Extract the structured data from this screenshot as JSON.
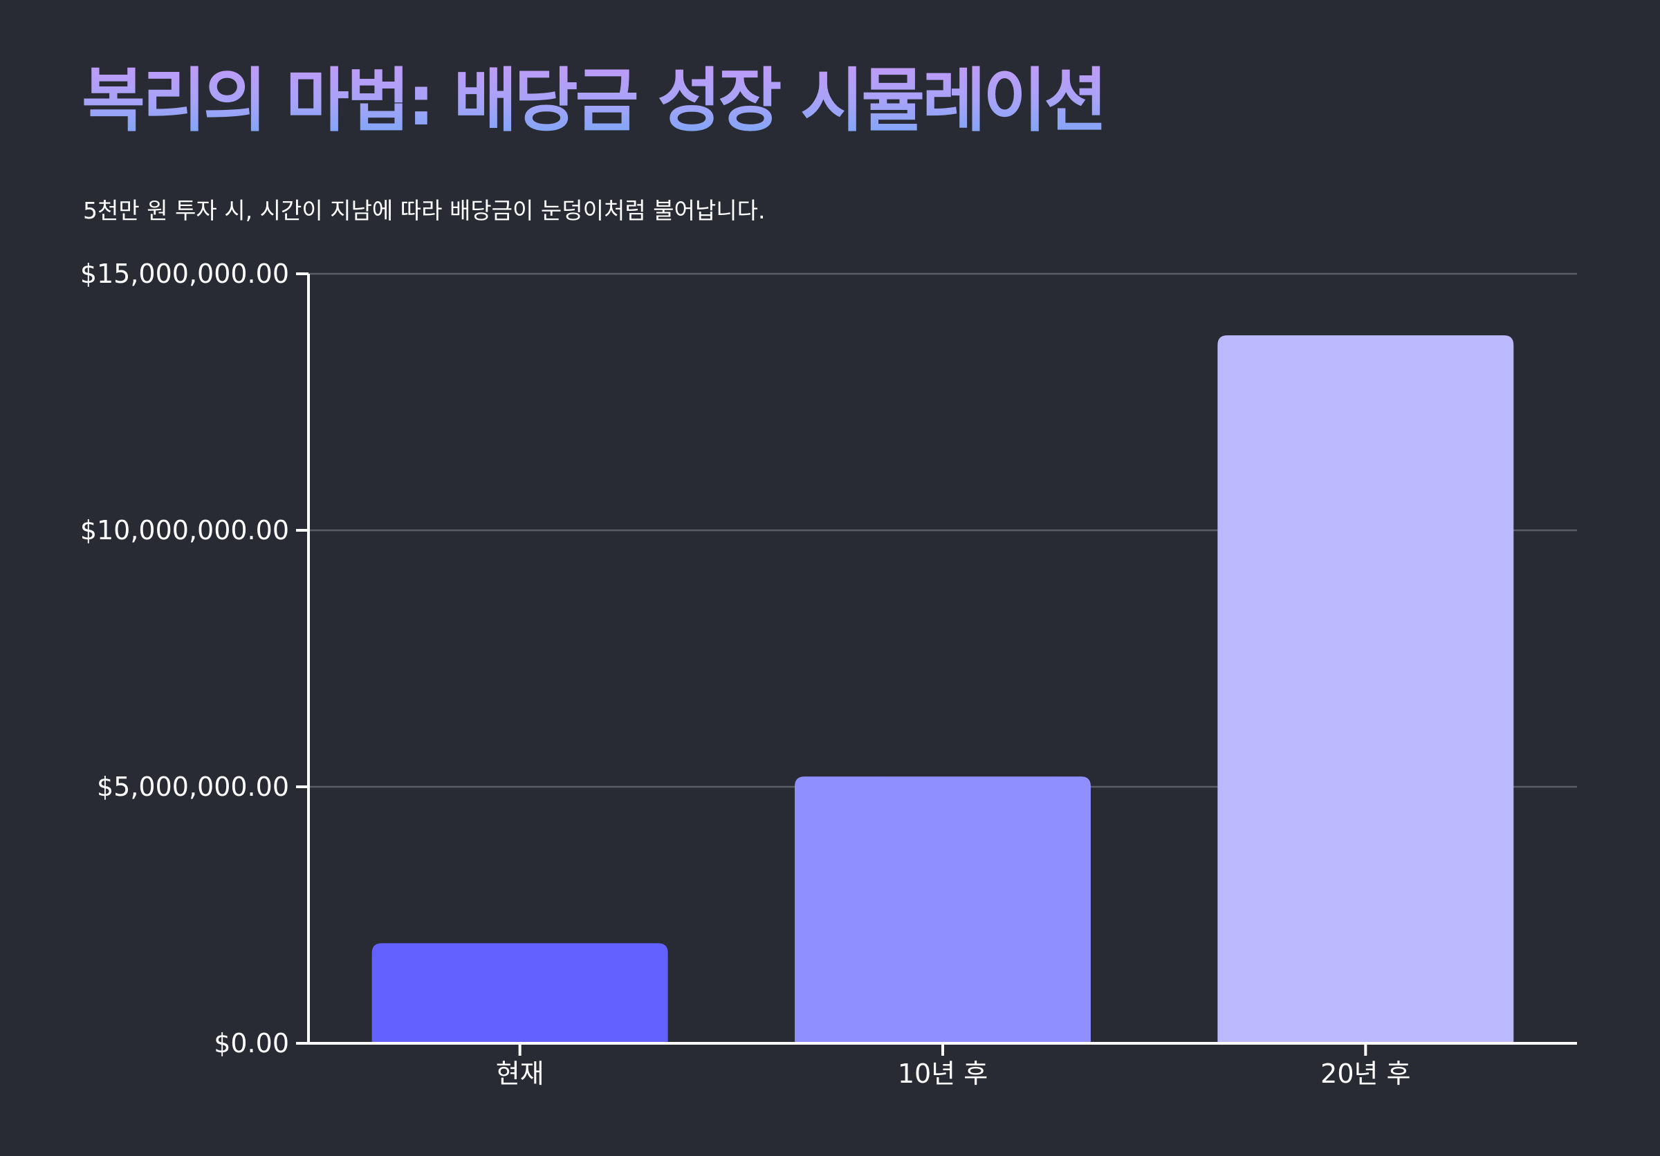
{
  "title": "복리의 마법: 배당금 성장 시뮬레이션",
  "subtitle": "5천만 원 투자 시, 시간이 지남에 따라 배당금이 눈덩이처럼 불어납니다.",
  "colors": {
    "background": "#282b33",
    "title_gradient_top": "#c39af7",
    "title_gradient_bottom": "#78a6f7",
    "grid": "#5a5d66",
    "axis": "#ffffff"
  },
  "chart_data": {
    "type": "bar",
    "categories": [
      "현재",
      "10년 후",
      "20년 후"
    ],
    "values": [
      1950000,
      5200000,
      13800000
    ],
    "bar_colors": [
      "#6361ff",
      "#8f8fff",
      "#bbb9ff"
    ],
    "ylim": [
      0,
      15000000
    ],
    "yticks": [
      0,
      5000000,
      10000000,
      15000000
    ],
    "ytick_labels": [
      "$0.00",
      "$5,000,000.00",
      "$10,000,000.00",
      "$15,000,000.00"
    ],
    "grid": true,
    "xlabel": "",
    "ylabel": ""
  }
}
